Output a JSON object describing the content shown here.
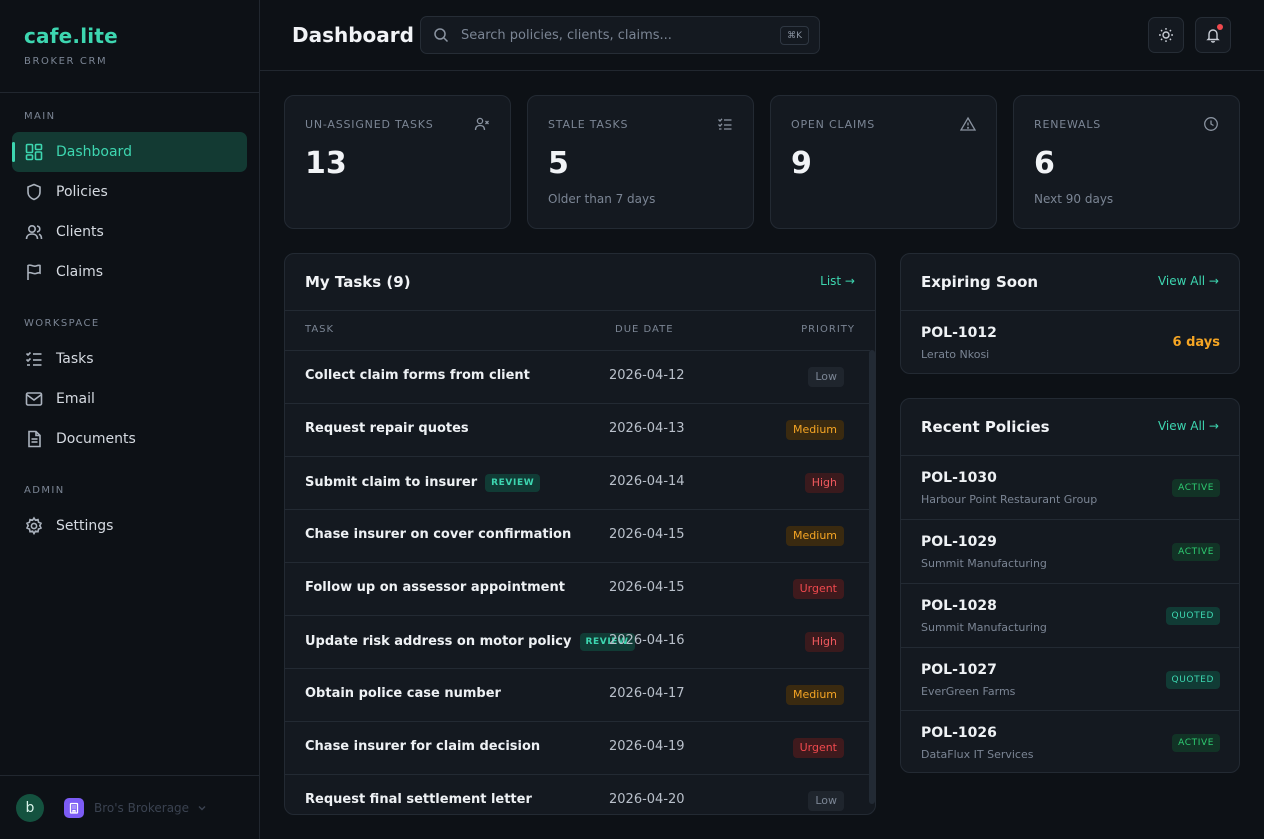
{
  "brand": {
    "name": "cafe.lite",
    "subtitle": "BROKER CRM"
  },
  "sidebar": {
    "sections": [
      "MAIN",
      "WORKSPACE",
      "ADMIN"
    ],
    "items": [
      {
        "label": "Dashboard",
        "icon": "dashboard-icon",
        "active": true
      },
      {
        "label": "Policies",
        "icon": "shield-icon"
      },
      {
        "label": "Clients",
        "icon": "users-icon"
      },
      {
        "label": "Claims",
        "icon": "flag-icon"
      },
      {
        "label": "Tasks",
        "icon": "checklist-icon"
      },
      {
        "label": "Email",
        "icon": "mail-icon"
      },
      {
        "label": "Documents",
        "icon": "document-icon"
      },
      {
        "label": "Settings",
        "icon": "gear-icon"
      }
    ],
    "footer": {
      "user_initial": "b",
      "org_name": "Bro's Brokerage"
    }
  },
  "header": {
    "title": "Dashboard",
    "search_placeholder": "Search policies, clients, claims...",
    "search_shortcut": "⌘K"
  },
  "stats": [
    {
      "label": "UN-ASSIGNED TASKS",
      "value": "13",
      "note": "",
      "icon": "user-x-icon"
    },
    {
      "label": "STALE TASKS",
      "value": "5",
      "note": "Older than 7 days",
      "icon": "list-check-icon"
    },
    {
      "label": "OPEN CLAIMS",
      "value": "9",
      "note": "",
      "icon": "warning-icon"
    },
    {
      "label": "RENEWALS",
      "value": "6",
      "note": "Next 90 days",
      "icon": "clock-icon"
    }
  ],
  "tasks": {
    "title": "My Tasks (9)",
    "link": "List →",
    "columns": [
      "TASK",
      "DUE DATE",
      "PRIORITY"
    ],
    "rows": [
      {
        "name": "Collect claim forms from client",
        "review": "",
        "due": "2026-04-12",
        "priority": "Low"
      },
      {
        "name": "Request repair quotes",
        "review": "",
        "due": "2026-04-13",
        "priority": "Medium"
      },
      {
        "name": "Submit claim to insurer",
        "review": "REVIEW",
        "due": "2026-04-14",
        "priority": "High"
      },
      {
        "name": "Chase insurer on cover confirmation",
        "review": "",
        "due": "2026-04-15",
        "priority": "Medium"
      },
      {
        "name": "Follow up on assessor appointment",
        "review": "",
        "due": "2026-04-15",
        "priority": "Urgent"
      },
      {
        "name": "Update risk address on motor policy",
        "review": "REVIEW",
        "due": "2026-04-16",
        "priority": "High"
      },
      {
        "name": "Obtain police case number",
        "review": "",
        "due": "2026-04-17",
        "priority": "Medium"
      },
      {
        "name": "Chase insurer for claim decision",
        "review": "",
        "due": "2026-04-19",
        "priority": "Urgent"
      },
      {
        "name": "Request final settlement letter",
        "review": "",
        "due": "2026-04-20",
        "priority": "Low"
      }
    ]
  },
  "expiring": {
    "title": "Expiring Soon",
    "link": "View All →",
    "items": [
      {
        "id": "POL-1012",
        "client": "Lerato Nkosi",
        "days": "6 days"
      }
    ]
  },
  "recent_policies": {
    "title": "Recent Policies",
    "link": "View All →",
    "items": [
      {
        "id": "POL-1030",
        "client": "Harbour Point Restaurant Group",
        "status": "ACTIVE"
      },
      {
        "id": "POL-1029",
        "client": "Summit Manufacturing",
        "status": "ACTIVE"
      },
      {
        "id": "POL-1028",
        "client": "Summit Manufacturing",
        "status": "QUOTED"
      },
      {
        "id": "POL-1027",
        "client": "EverGreen Farms",
        "status": "QUOTED"
      },
      {
        "id": "POL-1026",
        "client": "DataFlux IT Services",
        "status": "ACTIVE"
      }
    ]
  },
  "colors": {
    "accent": "#3dd6b0",
    "background": "#0d1116",
    "card": "#141920",
    "warning": "#f5a524",
    "danger": "#f0494e",
    "success": "#2ecc71"
  }
}
